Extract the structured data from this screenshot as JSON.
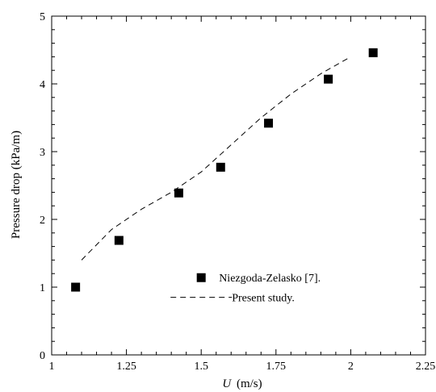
{
  "chart_data": {
    "type": "scatter",
    "title": "",
    "xlabel": "(m/s)",
    "xlabel_symbol": "U",
    "ylabel": "Pressure drop (kPa/m)",
    "xlim": [
      1,
      2.25
    ],
    "ylim": [
      0,
      5
    ],
    "x_ticks": [
      "1",
      "1.25",
      "1.5",
      "1.75",
      "2",
      "2.25"
    ],
    "y_ticks": [
      "0",
      "1",
      "2",
      "3",
      "4",
      "5"
    ],
    "grid": false,
    "legend_position": "center-right",
    "series": [
      {
        "name": "Niezgoda-Zelasko [7].",
        "style": "square-marker",
        "color": "#000000",
        "x": [
          1.08,
          1.225,
          1.425,
          1.565,
          1.725,
          1.925,
          2.075
        ],
        "y": [
          1.0,
          1.69,
          2.39,
          2.77,
          3.42,
          4.07,
          4.46
        ]
      },
      {
        "name": "Present study.",
        "style": "dashed-line",
        "color": "#000000",
        "x": [
          1.1,
          1.2,
          1.3,
          1.4,
          1.5,
          1.6,
          1.7,
          1.8,
          1.9,
          2.0
        ],
        "y": [
          1.4,
          1.85,
          2.15,
          2.4,
          2.7,
          3.1,
          3.5,
          3.85,
          4.15,
          4.4
        ]
      }
    ]
  }
}
